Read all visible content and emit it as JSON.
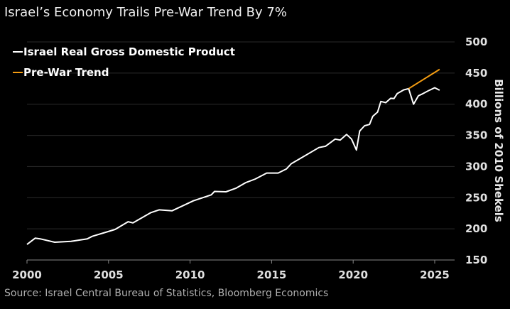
{
  "chart_data": {
    "type": "line",
    "title": "Israel’s Economy Trails Pre-War Trend By 7%",
    "source": "Source:  Israel Central Bureau of Statistics, Bloomberg Economics",
    "xlabel": "",
    "ylabel": "Billions of 2010 Shekels",
    "xlim": [
      2000,
      2026.2
    ],
    "ylim": [
      150,
      500
    ],
    "x_ticks": [
      2000,
      2005,
      2010,
      2015,
      2020,
      2025
    ],
    "y_ticks": [
      150,
      200,
      250,
      300,
      350,
      400,
      450,
      500
    ],
    "y_axis_position": "right",
    "grid": "horizontal",
    "legend_position": "top-left",
    "series": [
      {
        "name": "Israel Real Gross Domestic Product",
        "color": "#ffffff",
        "points": [
          [
            2000.0,
            175
          ],
          [
            2000.5,
            185
          ],
          [
            2000.8,
            184
          ],
          [
            2001.7,
            178.5
          ],
          [
            2002.7,
            180
          ],
          [
            2003.7,
            184
          ],
          [
            2004.0,
            188
          ],
          [
            2004.9,
            195
          ],
          [
            2005.4,
            199
          ],
          [
            2006.2,
            211.5
          ],
          [
            2006.5,
            209.5
          ],
          [
            2007.6,
            226
          ],
          [
            2008.1,
            230.5
          ],
          [
            2008.9,
            229
          ],
          [
            2010.2,
            245
          ],
          [
            2011.3,
            254.5
          ],
          [
            2011.5,
            260
          ],
          [
            2012.2,
            259.5
          ],
          [
            2012.8,
            265
          ],
          [
            2013.4,
            274
          ],
          [
            2014.0,
            280
          ],
          [
            2014.7,
            289.5
          ],
          [
            2015.4,
            289.5
          ],
          [
            2015.9,
            296
          ],
          [
            2016.2,
            304.5
          ],
          [
            2016.7,
            312
          ],
          [
            2017.9,
            330.5
          ],
          [
            2018.3,
            332.5
          ],
          [
            2018.9,
            344
          ],
          [
            2019.2,
            342.5
          ],
          [
            2019.6,
            351.5
          ],
          [
            2019.9,
            344
          ],
          [
            2020.2,
            326.5
          ],
          [
            2020.4,
            357
          ],
          [
            2020.7,
            365.5
          ],
          [
            2021.0,
            367.5
          ],
          [
            2021.2,
            380.5
          ],
          [
            2021.5,
            387.5
          ],
          [
            2021.7,
            404.5
          ],
          [
            2022.0,
            402.5
          ],
          [
            2022.3,
            409.5
          ],
          [
            2022.5,
            409
          ],
          [
            2022.7,
            417
          ],
          [
            2023.1,
            423
          ],
          [
            2023.4,
            425
          ],
          [
            2023.7,
            400
          ],
          [
            2024.0,
            413.5
          ],
          [
            2024.2,
            416
          ],
          [
            2024.6,
            421.5
          ],
          [
            2025.0,
            426.5
          ],
          [
            2025.3,
            422.5
          ]
        ]
      },
      {
        "name": "Pre-War Trend",
        "color": "#f39c12",
        "points": [
          [
            2023.4,
            425
          ],
          [
            2025.3,
            456
          ]
        ]
      }
    ]
  }
}
